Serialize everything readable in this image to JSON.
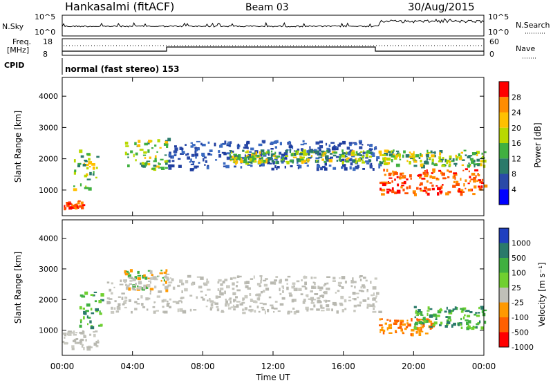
{
  "header": {
    "station": "Hankasalmi (fitACF)",
    "beam": "Beam 03",
    "date": "30/Aug/2015"
  },
  "top_panels": {
    "nsky_label": "N.Sky",
    "nsky_ticks": [
      "10^5",
      "10^0"
    ],
    "nsearch_label": "N.Search",
    "nsearch_ticks": [
      "10^5",
      "10^0"
    ],
    "freq_label": "Freq.",
    "freq_unit": "[MHz]",
    "freq_ticks": [
      "18",
      "8"
    ],
    "nave_label": "Nave",
    "nave_ticks": [
      "60",
      "0"
    ],
    "cpid_label": "CPID",
    "cpid_text": "normal (fast stereo) 153"
  },
  "chart_data": [
    {
      "type": "heatmap",
      "name": "power",
      "ylabel": "Slant Range [km]",
      "xlabel": "Time UT",
      "xlim": [
        "00:00",
        "24:00"
      ],
      "ylim": [
        180,
        4600
      ],
      "y_ticks": [
        "1000",
        "2000",
        "3000",
        "4000"
      ],
      "colorbar": {
        "label": "Power [dB]",
        "ticks": [
          "28",
          "24",
          "20",
          "16",
          "12",
          "8",
          "4"
        ],
        "colors": [
          "#ff0000",
          "#ff8c00",
          "#ffc000",
          "#b8d800",
          "#40b040",
          "#2a7a6a",
          "#2a4aa8",
          "#0000ff"
        ]
      },
      "echo_bands": [
        {
          "start_h": 0.0,
          "end_h": 1.2,
          "range_km": [
            450,
            700
          ],
          "level": "high"
        },
        {
          "start_h": 0.6,
          "end_h": 2.0,
          "range_km": [
            1000,
            2300
          ],
          "level": "mid"
        },
        {
          "start_h": 3.5,
          "end_h": 6.0,
          "range_km": [
            1700,
            2700
          ],
          "level": "mid"
        },
        {
          "start_h": 6.0,
          "end_h": 18.0,
          "range_km": [
            1700,
            2600
          ],
          "level": "low"
        },
        {
          "start_h": 9.5,
          "end_h": 17.5,
          "range_km": [
            1900,
            2300
          ],
          "level": "mid"
        },
        {
          "start_h": 18.0,
          "end_h": 24.0,
          "range_km": [
            900,
            1700
          ],
          "level": "high"
        },
        {
          "start_h": 18.0,
          "end_h": 24.0,
          "range_km": [
            1800,
            2300
          ],
          "level": "mid"
        }
      ]
    },
    {
      "type": "heatmap",
      "name": "velocity",
      "ylabel": "Slant Range [km]",
      "xlabel": "Time UT",
      "xlim": [
        "00:00",
        "24:00"
      ],
      "ylim": [
        180,
        4600
      ],
      "y_ticks": [
        "1000",
        "2000",
        "3000",
        "4000"
      ],
      "colorbar": {
        "label": "Velocity [m s⁻¹]",
        "ticks": [
          "1000",
          "500",
          "100",
          "25",
          "-25",
          "-100",
          "-500",
          "-1000"
        ],
        "colors": [
          "#2040c0",
          "#2a7a6a",
          "#40b040",
          "#70d030",
          "#c0c0b8",
          "#ff9900",
          "#ff6000",
          "#ff0000"
        ]
      },
      "echo_bands": [
        {
          "start_h": 0.0,
          "end_h": 2.0,
          "range_km": [
            400,
            1000
          ],
          "level": "ground"
        },
        {
          "start_h": 0.9,
          "end_h": 2.2,
          "range_km": [
            1100,
            2300
          ],
          "level": "positive"
        },
        {
          "start_h": 3.5,
          "end_h": 6.0,
          "range_km": [
            2300,
            3000
          ],
          "level": "mixed"
        },
        {
          "start_h": 2.5,
          "end_h": 18.0,
          "range_km": [
            1600,
            2800
          ],
          "level": "ground"
        },
        {
          "start_h": 18.0,
          "end_h": 21.0,
          "range_km": [
            900,
            1400
          ],
          "level": "negative"
        },
        {
          "start_h": 20.0,
          "end_h": 24.0,
          "range_km": [
            1100,
            1800
          ],
          "level": "positive"
        }
      ]
    }
  ],
  "x_axis": {
    "label": "Time UT",
    "ticks": [
      "00:00",
      "04:00",
      "08:00",
      "12:00",
      "16:00",
      "20:00",
      "00:00"
    ]
  }
}
